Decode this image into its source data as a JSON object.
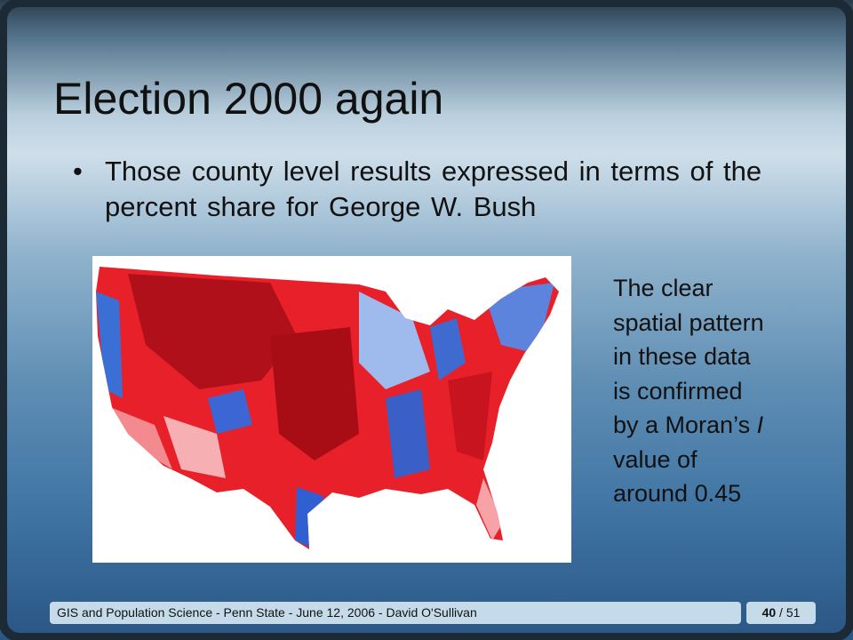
{
  "slide": {
    "title": "Election 2000 again",
    "bullet": "Those county level results expressed in terms of the percent share for George W. Bush",
    "side_note": {
      "lines": [
        "The clear",
        "spatial pattern",
        "in these data",
        "is confirmed",
        "by a Moran’s",
        "value of",
        "around 0.45"
      ],
      "italic": "I"
    },
    "footer": {
      "text": "GIS and Population Science - Penn State - June 12, 2006 - David O'Sullivan",
      "page_number": "40",
      "page_total": "/ 51"
    }
  }
}
